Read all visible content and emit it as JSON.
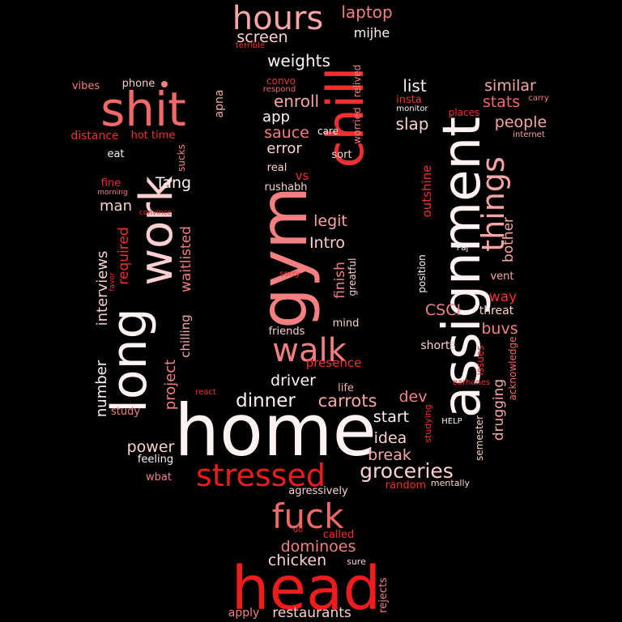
{
  "palette": {
    "background": "#000000",
    "bright_red": "#ee1c1c",
    "red": "#f03030",
    "coral": "#f06868",
    "salmon": "#f38080",
    "pink": "#f7a6a6",
    "light_pink": "#fbd0d0",
    "white": "#fff2f2"
  },
  "words": [
    {
      "text": "home"
    },
    {
      "text": "head"
    },
    {
      "text": "gym"
    },
    {
      "text": "assignment"
    },
    {
      "text": "long"
    },
    {
      "text": "work"
    },
    {
      "text": "chill"
    },
    {
      "text": "shit"
    },
    {
      "text": "stressed"
    },
    {
      "text": "fuck"
    },
    {
      "text": "hours"
    },
    {
      "text": "walk"
    },
    {
      "text": "things"
    },
    {
      "text": "groceries"
    },
    {
      "text": "dinner"
    },
    {
      "text": "carrots"
    },
    {
      "text": "laptop"
    },
    {
      "text": "screen"
    },
    {
      "text": "weights"
    },
    {
      "text": "mijhe"
    },
    {
      "text": "terrible"
    },
    {
      "text": "enroll"
    },
    {
      "text": "app"
    },
    {
      "text": "sauce"
    },
    {
      "text": "error"
    },
    {
      "text": "convo"
    },
    {
      "text": "respond"
    },
    {
      "text": "relived"
    },
    {
      "text": "worried"
    },
    {
      "text": "list"
    },
    {
      "text": "similar"
    },
    {
      "text": "stats"
    },
    {
      "text": "slap"
    },
    {
      "text": "people"
    },
    {
      "text": "insta"
    },
    {
      "text": "monitor"
    },
    {
      "text": "carry"
    },
    {
      "text": "places"
    },
    {
      "text": "internet"
    },
    {
      "text": "vibes"
    },
    {
      "text": "phone"
    },
    {
      "text": "apna"
    },
    {
      "text": "distance"
    },
    {
      "text": "hot time"
    },
    {
      "text": "eat"
    },
    {
      "text": "sucks"
    },
    {
      "text": "care"
    },
    {
      "text": "sort"
    },
    {
      "text": "Tang"
    },
    {
      "text": "fine"
    },
    {
      "text": "morning"
    },
    {
      "text": "real"
    },
    {
      "text": "vs"
    },
    {
      "text": "rushabh"
    },
    {
      "text": "outshine"
    },
    {
      "text": "man"
    },
    {
      "text": "convince"
    },
    {
      "text": "legit"
    },
    {
      "text": "bother"
    },
    {
      "text": "required"
    },
    {
      "text": "waitlisted"
    },
    {
      "text": "Intro"
    },
    {
      "text": "Paj"
    },
    {
      "text": "interviews"
    },
    {
      "text": "favor"
    },
    {
      "text": "sorry"
    },
    {
      "text": "greatful"
    },
    {
      "text": "finish"
    },
    {
      "text": "position"
    },
    {
      "text": "vent"
    },
    {
      "text": "way"
    },
    {
      "text": "CSCI"
    },
    {
      "text": "threat"
    },
    {
      "text": "chilling"
    },
    {
      "text": "mind"
    },
    {
      "text": "buvs"
    },
    {
      "text": "friends"
    },
    {
      "text": "project"
    },
    {
      "text": "shorts"
    },
    {
      "text": "acknowledge"
    },
    {
      "text": "issues"
    },
    {
      "text": "presence"
    },
    {
      "text": "number"
    },
    {
      "text": "driver"
    },
    {
      "text": "life"
    },
    {
      "text": "drugging"
    },
    {
      "text": "react"
    },
    {
      "text": "earhones"
    },
    {
      "text": "dev"
    },
    {
      "text": "study"
    },
    {
      "text": "start"
    },
    {
      "text": "studying"
    },
    {
      "text": "HELP"
    },
    {
      "text": "semester"
    },
    {
      "text": "idea"
    },
    {
      "text": "power"
    },
    {
      "text": "break"
    },
    {
      "text": "feeling"
    },
    {
      "text": "wbat"
    },
    {
      "text": "random"
    },
    {
      "text": "mentally"
    },
    {
      "text": "agressively"
    },
    {
      "text": "uo"
    },
    {
      "text": "called"
    },
    {
      "text": "dominoes"
    },
    {
      "text": "chicken"
    },
    {
      "text": "sure"
    },
    {
      "text": "rejects"
    },
    {
      "text": "apply"
    },
    {
      "text": "restaurants"
    }
  ]
}
